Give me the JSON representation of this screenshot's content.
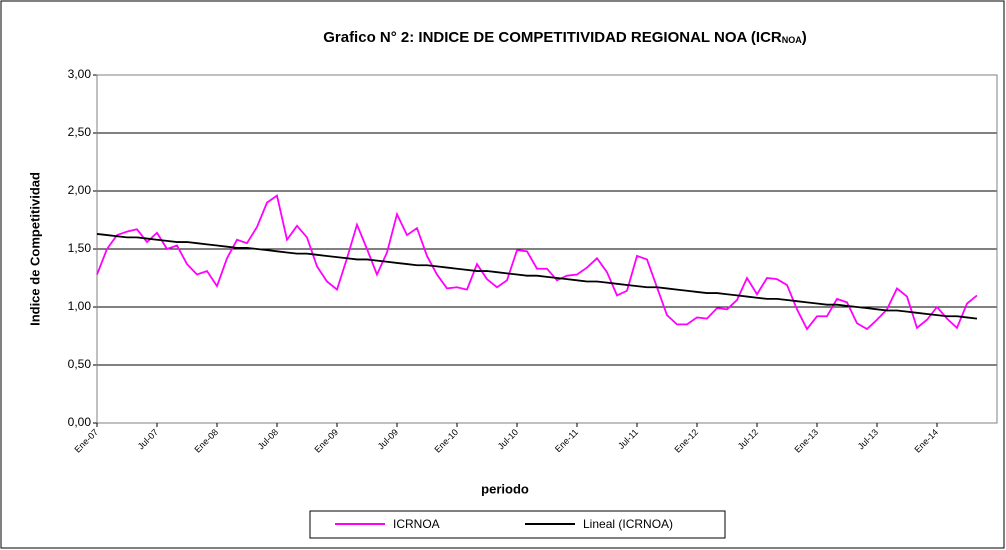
{
  "chart_data": {
    "type": "line",
    "title_parts": [
      "Grafico N° 2: INDICE DE COMPETITIVIDAD REGIONAL NOA (ICR",
      "NOA",
      ")"
    ],
    "x_label": "periodo",
    "y_label": "Indice de Competitividad",
    "categories": [
      "Ene-07",
      null,
      null,
      null,
      null,
      null,
      "Jul-07",
      null,
      null,
      null,
      null,
      null,
      "Ene-08",
      null,
      null,
      null,
      null,
      null,
      "Jul-08",
      null,
      null,
      null,
      null,
      null,
      "Ene-09",
      null,
      null,
      null,
      null,
      null,
      "Jul-09",
      null,
      null,
      null,
      null,
      null,
      "Ene-10",
      null,
      null,
      null,
      null,
      null,
      "Jul-10",
      null,
      null,
      null,
      null,
      null,
      "Ene-11",
      null,
      null,
      null,
      null,
      null,
      "Jul-11",
      null,
      null,
      null,
      null,
      null,
      "Ene-12",
      null,
      null,
      null,
      null,
      null,
      "Jul-12",
      null,
      null,
      null,
      null,
      null,
      "Ene-13",
      null,
      null,
      null,
      null,
      null,
      "Jul-13",
      null,
      null,
      null,
      null,
      null,
      "Ene-14",
      null,
      null,
      null,
      null
    ],
    "series": [
      {
        "name": "ICRNOA",
        "color": "#ff00ff",
        "values": [
          1.28,
          1.5,
          1.62,
          1.65,
          1.67,
          1.56,
          1.64,
          1.5,
          1.53,
          1.37,
          1.28,
          1.31,
          1.18,
          1.42,
          1.58,
          1.55,
          1.69,
          1.9,
          1.96,
          1.58,
          1.7,
          1.6,
          1.35,
          1.22,
          1.15,
          1.42,
          1.71,
          1.5,
          1.28,
          1.47,
          1.8,
          1.62,
          1.68,
          1.44,
          1.28,
          1.16,
          1.17,
          1.15,
          1.37,
          1.24,
          1.17,
          1.23,
          1.49,
          1.48,
          1.33,
          1.33,
          1.23,
          1.27,
          1.28,
          1.34,
          1.42,
          1.3,
          1.1,
          1.14,
          1.44,
          1.41,
          1.17,
          0.93,
          0.85,
          0.85,
          0.91,
          0.9,
          0.99,
          0.98,
          1.06,
          1.25,
          1.11,
          1.25,
          1.24,
          1.19,
          0.98,
          0.81,
          0.92,
          0.92,
          1.07,
          1.04,
          0.86,
          0.81,
          0.89,
          0.98,
          1.16,
          1.09,
          0.82,
          0.89,
          1.0,
          0.9,
          0.82,
          1.03,
          1.1
        ]
      },
      {
        "name": "Lineal (ICRNOA)",
        "color": "#000000",
        "values": [
          1.63,
          1.62,
          1.61,
          1.6,
          1.6,
          1.59,
          1.58,
          1.57,
          1.56,
          1.56,
          1.55,
          1.54,
          1.53,
          1.52,
          1.51,
          1.51,
          1.5,
          1.49,
          1.48,
          1.47,
          1.46,
          1.46,
          1.45,
          1.44,
          1.43,
          1.42,
          1.41,
          1.41,
          1.4,
          1.39,
          1.38,
          1.37,
          1.36,
          1.36,
          1.35,
          1.34,
          1.33,
          1.32,
          1.31,
          1.31,
          1.3,
          1.29,
          1.28,
          1.27,
          1.27,
          1.26,
          1.25,
          1.24,
          1.23,
          1.22,
          1.22,
          1.21,
          1.2,
          1.19,
          1.18,
          1.17,
          1.17,
          1.16,
          1.15,
          1.14,
          1.13,
          1.12,
          1.12,
          1.11,
          1.1,
          1.09,
          1.08,
          1.07,
          1.07,
          1.06,
          1.05,
          1.04,
          1.03,
          1.02,
          1.02,
          1.01,
          1.0,
          0.99,
          0.98,
          0.97,
          0.97,
          0.96,
          0.95,
          0.94,
          0.93,
          0.92,
          0.92,
          0.91,
          0.9
        ]
      }
    ],
    "ylim": [
      0,
      3
    ],
    "yticks": [
      {
        "value": 0,
        "label": "0,00"
      },
      {
        "value": 0.5,
        "label": "0,50"
      },
      {
        "value": 1,
        "label": "1,00"
      },
      {
        "value": 1.5,
        "label": "1,50"
      },
      {
        "value": 2,
        "label": "2,00"
      },
      {
        "value": 2.5,
        "label": "2,50"
      },
      {
        "value": 3,
        "label": "3,00"
      }
    ],
    "grid": true
  }
}
